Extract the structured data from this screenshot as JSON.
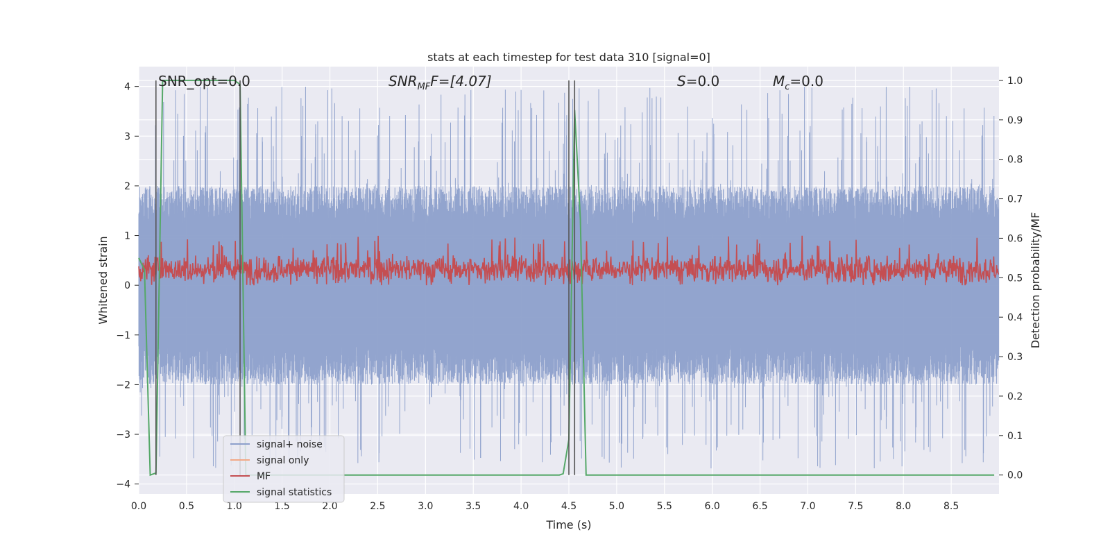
{
  "chart_data": {
    "type": "line",
    "title": "stats at each timestep for test data 310 [signal=0]",
    "xlabel": "Time (s)",
    "ylabel": "Whitened strain",
    "y2label": "Detection probability/MF",
    "xlim": [
      0.0,
      9.0
    ],
    "ylim": [
      -4.2,
      4.4
    ],
    "y2lim": [
      -0.048,
      1.035
    ],
    "x_ticks": [
      "0.0",
      "0.5",
      "1.0",
      "1.5",
      "2.0",
      "2.5",
      "3.0",
      "3.5",
      "4.0",
      "4.5",
      "5.0",
      "5.5",
      "6.0",
      "6.5",
      "7.0",
      "7.5",
      "8.0",
      "8.5"
    ],
    "y_ticks": [
      "4",
      "3",
      "2",
      "1",
      "0",
      "−1",
      "−2",
      "−3",
      "−4"
    ],
    "y2_ticks": [
      "1.0",
      "0.9",
      "0.8",
      "0.7",
      "0.6",
      "0.5",
      "0.4",
      "0.3",
      "0.2",
      "0.1",
      "0.0"
    ],
    "grid": true,
    "legend_position": "lower-left",
    "annotations": {
      "snr_opt": "SNR_opt=0.0",
      "snr_mf_main": "SNR",
      "snr_mf_sub": "MF",
      "snr_mf_rest": "F=[4.07]",
      "s_main": "S",
      "s_rest": "=0.0",
      "mc_main": "M",
      "mc_sub": "c",
      "mc_rest": "=0.0"
    },
    "vertical_markers": [
      0.18,
      1.06,
      4.5,
      4.56
    ],
    "colors": {
      "signal_noise": "#8da0cb",
      "signal_only": "#f2a987",
      "mf": "#c44e52",
      "signal_statistics": "#55a868",
      "marker": "#555555"
    },
    "series": [
      {
        "name": "signal+ noise",
        "description_type": "noise",
        "sample_rate": 400,
        "typical_range": [
          -1.6,
          1.6
        ],
        "max_range": [
          -3.7,
          4.0
        ]
      },
      {
        "name": "signal only",
        "x": [],
        "y": []
      },
      {
        "name": "MF",
        "sample_rate": 200,
        "typical_range": [
          0.0,
          0.7
        ],
        "max_range": [
          0.0,
          1.0
        ]
      },
      {
        "name": "signal statistics",
        "axis": "right",
        "x": [
          0.0,
          0.06,
          0.12,
          0.18,
          0.25,
          0.5,
          0.75,
          1.0,
          1.06,
          1.12,
          1.25,
          1.5,
          2.0,
          2.5,
          3.0,
          3.5,
          4.0,
          4.4,
          4.44,
          4.5,
          4.56,
          4.62,
          4.68,
          4.75,
          5.0,
          5.5,
          6.0,
          6.5,
          7.0,
          7.5,
          8.0,
          8.5,
          8.95
        ],
        "y": [
          0.55,
          0.52,
          0.0,
          0.005,
          1.0,
          1.0,
          1.0,
          1.0,
          0.99,
          0.0,
          0.0,
          0.0,
          0.0,
          0.0,
          0.0,
          0.0,
          0.0,
          0.0,
          0.003,
          0.09,
          0.925,
          0.65,
          0.0,
          0.0,
          0.0,
          0.0,
          0.0,
          0.0,
          0.0,
          0.0,
          0.0,
          0.0,
          0.0
        ]
      }
    ]
  }
}
